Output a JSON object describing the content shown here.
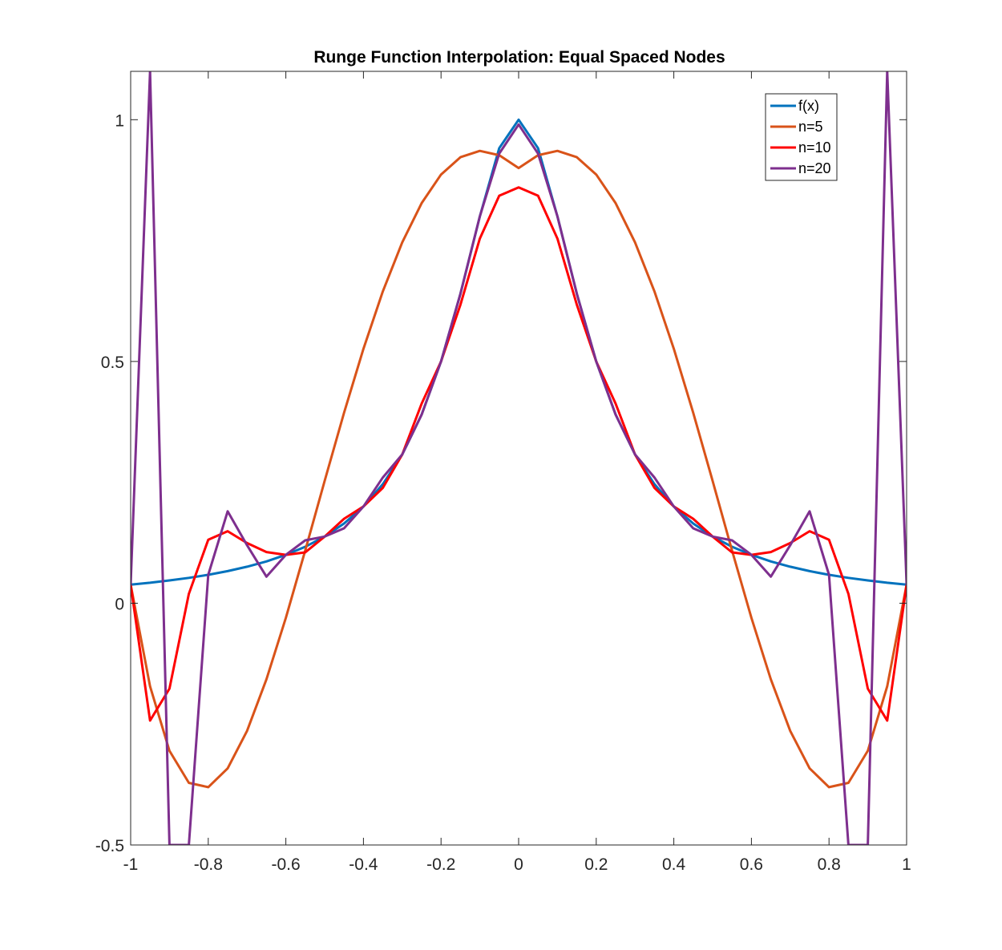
{
  "chart_data": {
    "type": "line",
    "title": "Runge Function Interpolation: Equal Spaced Nodes",
    "xlabel": "",
    "ylabel": "",
    "xlim": [
      -1,
      1
    ],
    "ylim": [
      -0.5,
      1.1
    ],
    "x_ticks": [
      -1,
      -0.8,
      -0.6,
      -0.4,
      -0.2,
      0,
      0.2,
      0.4,
      0.6,
      0.8,
      1
    ],
    "x_tick_labels": [
      "-1",
      "-0.8",
      "-0.6",
      "-0.4",
      "-0.2",
      "0",
      "0.2",
      "0.4",
      "0.6",
      "0.8",
      "1"
    ],
    "y_ticks": [
      -0.5,
      0,
      0.5,
      1
    ],
    "y_tick_labels": [
      "-0.5",
      "0",
      "0.5",
      "1"
    ],
    "grid": false,
    "legend_position": "top-right",
    "x": [
      -1,
      -0.95,
      -0.9,
      -0.85,
      -0.8,
      -0.75,
      -0.7,
      -0.65,
      -0.6,
      -0.55,
      -0.5,
      -0.45,
      -0.4,
      -0.35,
      -0.3,
      -0.25,
      -0.2,
      -0.15,
      -0.1,
      -0.05,
      0,
      0.05,
      0.1,
      0.15,
      0.2,
      0.25,
      0.3,
      0.35,
      0.4,
      0.45,
      0.5,
      0.55,
      0.6,
      0.65,
      0.7,
      0.75,
      0.8,
      0.85,
      0.9,
      0.95,
      1
    ],
    "series": [
      {
        "name": "f(x)",
        "color": "#0072BD",
        "values": [
          0.0385,
          0.0424,
          0.0471,
          0.0525,
          0.0588,
          0.0664,
          0.0755,
          0.0865,
          0.1,
          0.1168,
          0.1379,
          0.1649,
          0.2,
          0.2462,
          0.3077,
          0.3902,
          0.5,
          0.64,
          0.8,
          0.9412,
          1,
          0.9412,
          0.8,
          0.64,
          0.5,
          0.3902,
          0.3077,
          0.2462,
          0.2,
          0.1649,
          0.1379,
          0.1168,
          0.1,
          0.0865,
          0.0755,
          0.0664,
          0.0588,
          0.0525,
          0.0471,
          0.0424,
          0.0385
        ]
      },
      {
        "name": "n=5",
        "color": "#D95319",
        "values": [
          0.0385,
          -0.1718,
          -0.3052,
          -0.3715,
          -0.3804,
          -0.3415,
          -0.2641,
          -0.1573,
          -0.0302,
          0.1091,
          0.2529,
          0.3939,
          0.5262,
          0.645,
          0.7464,
          0.8275,
          0.8866,
          0.9225,
          0.9356,
          0.9265,
          0.9,
          0.9265,
          0.9356,
          0.9225,
          0.8866,
          0.8275,
          0.7464,
          0.645,
          0.5262,
          0.3939,
          0.2529,
          0.1091,
          -0.0302,
          -0.1573,
          -0.2641,
          -0.3415,
          -0.3804,
          -0.3715,
          -0.3052,
          -0.1718,
          0.0385
        ]
      },
      {
        "name": "n=10",
        "color": "#FF0000",
        "values": [
          0.0385,
          -0.2426,
          -0.1767,
          0.0195,
          0.1313,
          0.1489,
          0.1244,
          0.1058,
          0.1,
          0.1051,
          0.1379,
          0.1747,
          0.2,
          0.2387,
          0.3077,
          0.4128,
          0.5,
          0.6174,
          0.7541,
          0.8429,
          0.86,
          0.8429,
          0.7541,
          0.6174,
          0.5,
          0.4128,
          0.3077,
          0.2387,
          0.2,
          0.1747,
          0.1379,
          0.1051,
          0.1,
          0.1058,
          0.1244,
          0.1489,
          0.1313,
          0.0195,
          -0.1767,
          -0.2426,
          0.0385
        ]
      },
      {
        "name": "n=20",
        "color": "#7E2F8E",
        "values": [
          0.0385,
          1.1,
          -0.5,
          -0.5,
          0.0588,
          0.19,
          0.12,
          0.055,
          0.1,
          0.13,
          0.1379,
          0.155,
          0.2,
          0.26,
          0.3077,
          0.39,
          0.5,
          0.64,
          0.8,
          0.93,
          0.99,
          0.93,
          0.8,
          0.64,
          0.5,
          0.39,
          0.3077,
          0.26,
          0.2,
          0.155,
          0.1379,
          0.13,
          0.1,
          0.055,
          0.12,
          0.19,
          0.0588,
          -0.5,
          -0.5,
          1.1,
          0.0385
        ]
      }
    ]
  }
}
